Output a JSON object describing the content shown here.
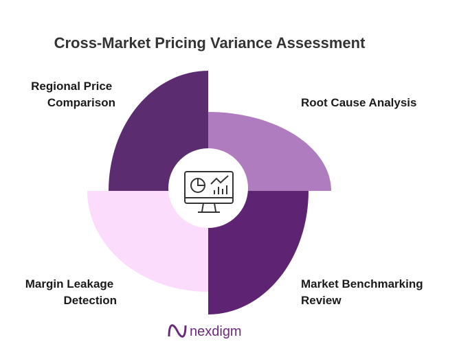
{
  "title": "Cross-Market Pricing Variance Assessment",
  "segments": [
    {
      "label": [
        "Regional Price",
        "Comparison"
      ]
    },
    {
      "label": [
        "Root Cause Analysis"
      ]
    },
    {
      "label": [
        "Market Benchmarking",
        "Review"
      ]
    },
    {
      "label": [
        "Margin Leakage",
        "Detection"
      ]
    }
  ],
  "brand": "nexdigm"
}
